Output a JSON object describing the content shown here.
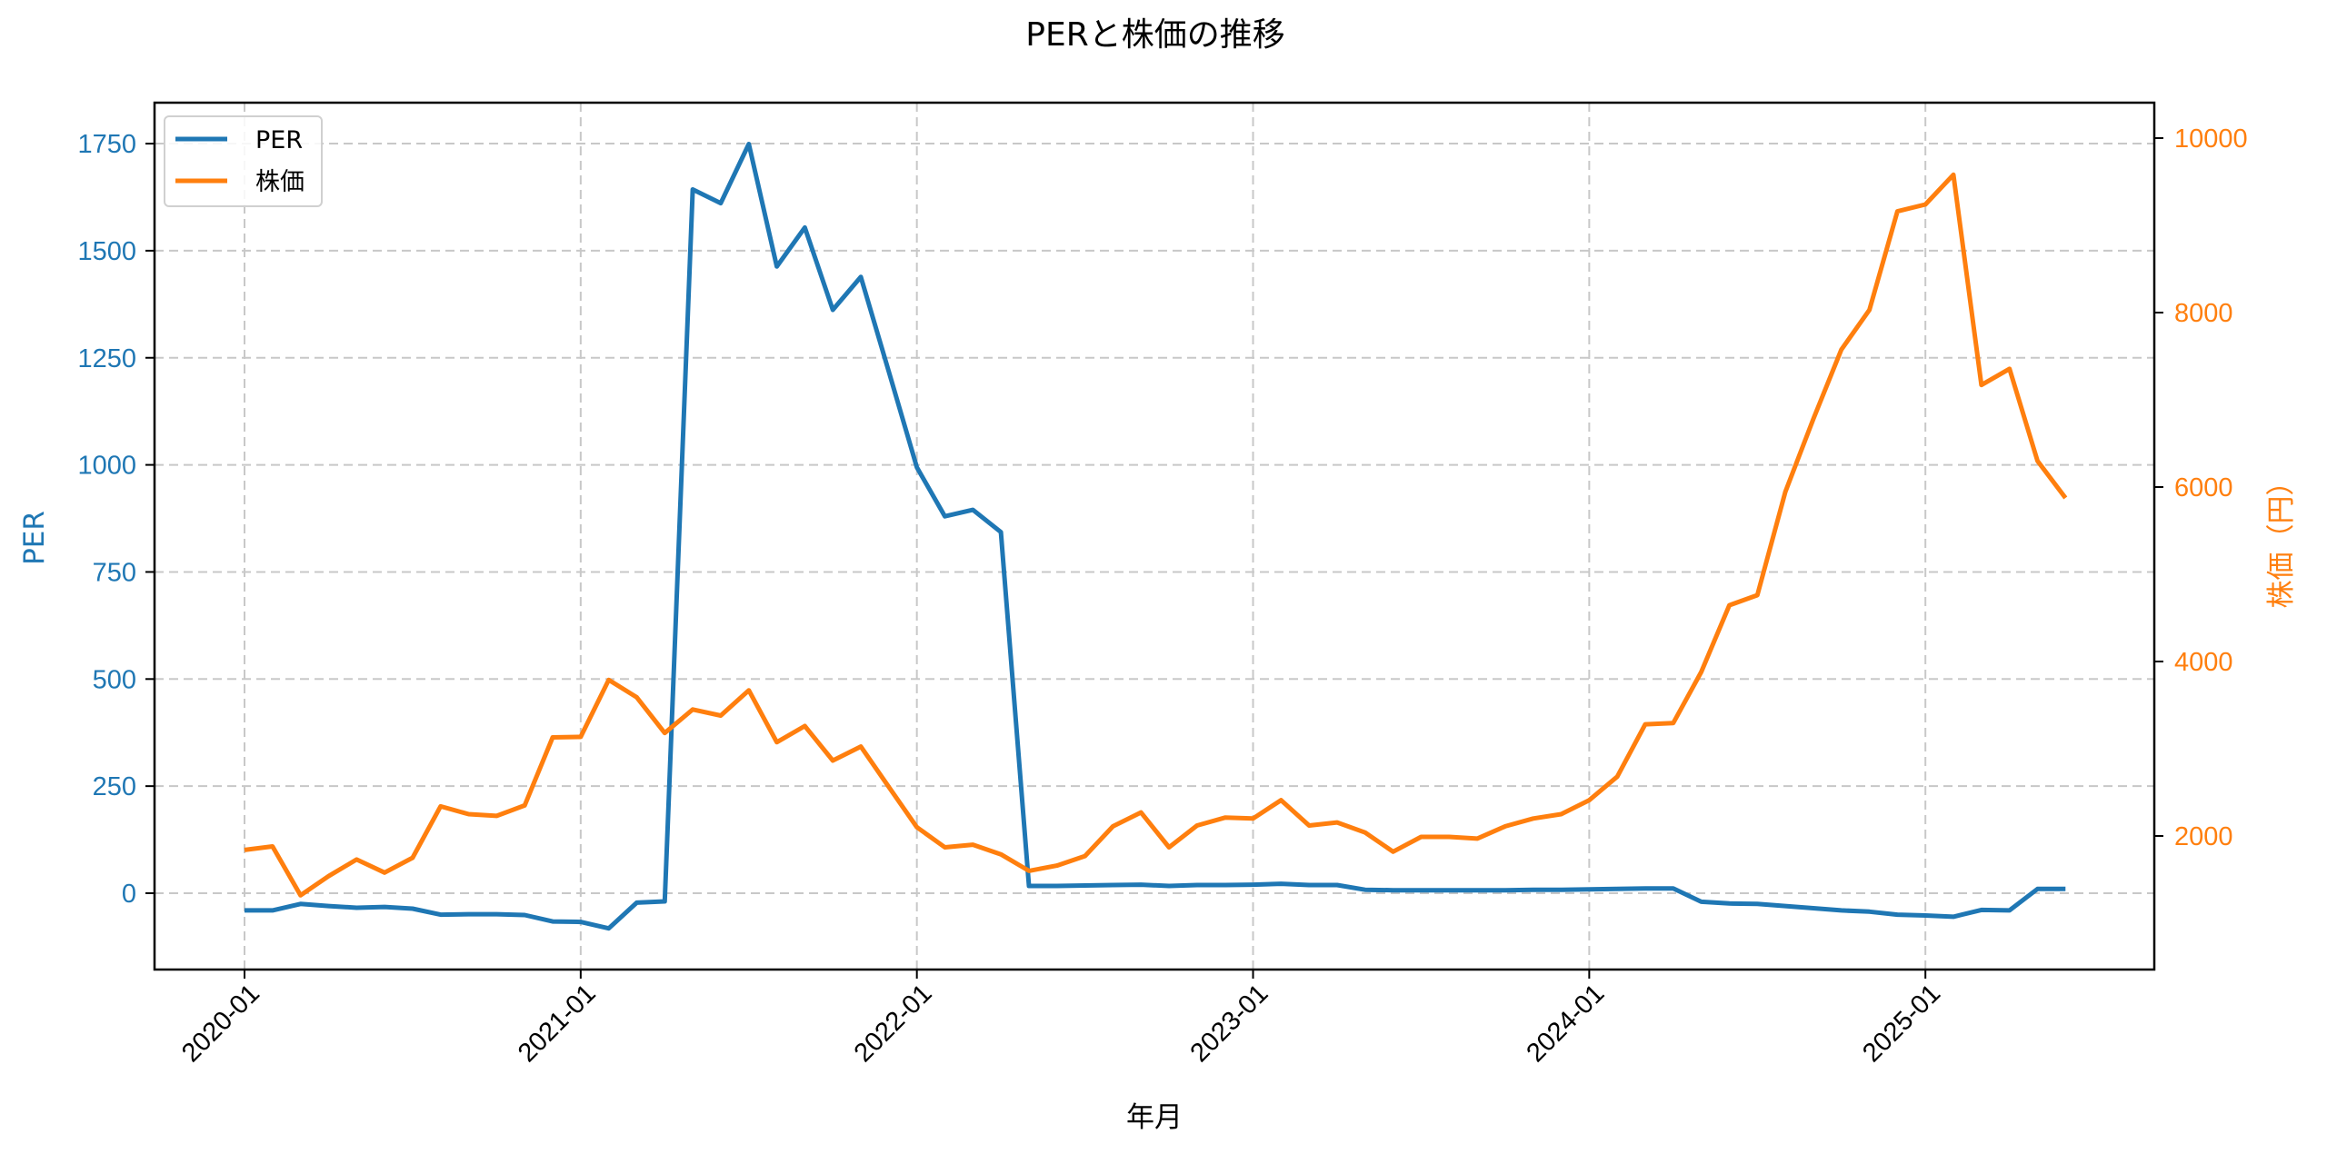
{
  "chart_data": {
    "type": "line",
    "title": "PERと株価の推移",
    "xlabel": "年月",
    "ylabel": "PER",
    "y2label": "株価（円）",
    "grid": true,
    "legend_position": "upper left",
    "x_tick_labels": [
      "2020-01",
      "2021-01",
      "2022-01",
      "2023-01",
      "2024-01",
      "2025-01"
    ],
    "y_ticks": [
      0,
      250,
      500,
      750,
      1000,
      1250,
      1500,
      1750
    ],
    "y2_ticks": [
      2000,
      4000,
      6000,
      8000,
      10000
    ],
    "ylim": [
      -180,
      1840
    ],
    "y2lim": [
      530,
      10350
    ],
    "x": [
      "2020-01",
      "2020-02",
      "2020-03",
      "2020-04",
      "2020-05",
      "2020-06",
      "2020-07",
      "2020-08",
      "2020-09",
      "2020-10",
      "2020-11",
      "2020-12",
      "2021-01",
      "2021-02",
      "2021-03",
      "2021-04",
      "2021-05",
      "2021-06",
      "2021-07",
      "2021-08",
      "2021-09",
      "2021-10",
      "2021-11",
      "2021-12",
      "2022-01",
      "2022-02",
      "2022-03",
      "2022-04",
      "2022-05",
      "2022-06",
      "2022-07",
      "2022-08",
      "2022-09",
      "2022-10",
      "2022-11",
      "2022-12",
      "2023-01",
      "2023-02",
      "2023-03",
      "2023-04",
      "2023-05",
      "2023-06",
      "2023-07",
      "2023-08",
      "2023-09",
      "2023-10",
      "2023-11",
      "2023-12",
      "2024-01",
      "2024-02",
      "2024-03",
      "2024-04",
      "2024-05",
      "2024-06",
      "2024-07",
      "2024-08",
      "2024-09",
      "2024-10",
      "2024-11",
      "2024-12",
      "2025-01",
      "2025-02",
      "2025-03",
      "2025-04",
      "2025-05",
      "2025-06"
    ],
    "series": [
      {
        "name": "PER",
        "axis": "left",
        "color": "#1f77b4",
        "values": [
          -40,
          -40,
          -25,
          -30,
          -34,
          -32,
          -36,
          -50,
          -49,
          -49,
          -51,
          -66,
          -67,
          -82,
          -22,
          -19,
          1643,
          1611,
          1749,
          1463,
          1554,
          1362,
          1439,
          1217,
          994,
          880,
          895,
          843,
          17,
          17,
          18,
          19,
          20,
          17,
          19,
          19,
          20,
          22,
          19,
          19,
          8,
          7,
          7,
          7,
          7,
          7,
          8,
          8,
          9,
          10,
          11,
          11,
          -20,
          -24,
          -25,
          -30,
          -35,
          -40,
          -43,
          -50,
          -52,
          -55,
          -39,
          -40,
          10,
          10
        ]
      },
      {
        "name": "株価",
        "axis": "right",
        "color": "#ff7f0e",
        "values": [
          1840,
          1880,
          1320,
          1540,
          1730,
          1580,
          1750,
          2340,
          2250,
          2230,
          2350,
          3130,
          3135,
          3790,
          3590,
          3180,
          3450,
          3380,
          3670,
          3075,
          3260,
          2865,
          3025,
          2560,
          2100,
          1870,
          1900,
          1790,
          1600,
          1660,
          1770,
          2110,
          2270,
          1870,
          2120,
          2210,
          2200,
          2410,
          2120,
          2155,
          2040,
          1820,
          1990,
          1990,
          1970,
          2110,
          2200,
          2250,
          2410,
          2680,
          3280,
          3295,
          3880,
          4645,
          4760,
          5945,
          6780,
          7575,
          8030,
          9160,
          9240,
          9580,
          7170,
          7355,
          6300,
          5875
        ]
      }
    ]
  },
  "legend": {
    "items": [
      {
        "label": "PER",
        "color": "#1f77b4"
      },
      {
        "label": "株価",
        "color": "#ff7f0e"
      }
    ]
  },
  "colors": {
    "per": "#1f77b4",
    "price": "#ff7f0e",
    "grid": "#c8c8c8",
    "frame": "#000000"
  }
}
